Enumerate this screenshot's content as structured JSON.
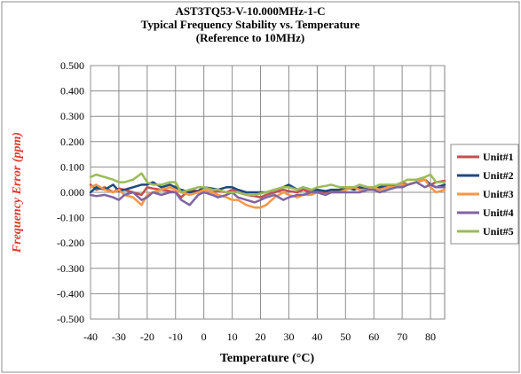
{
  "chart_data": {
    "type": "line",
    "title": [
      "AST3TQ53-V-10.000MHz-1-C",
      "Typical Frequency Stability vs. Temperature",
      "(Reference to 10MHz)"
    ],
    "xlabel": "Temperature (°C)",
    "ylabel": "Frequency Error (ppm)",
    "xlim": [
      -40,
      85
    ],
    "ylim": [
      -0.5,
      0.5
    ],
    "x_ticks": [
      -40,
      -30,
      -20,
      -10,
      0,
      10,
      20,
      30,
      40,
      50,
      60,
      70,
      80
    ],
    "x_tick_labels": [
      "-40",
      "-30",
      "-20",
      "-10",
      "0",
      "10",
      "20",
      "30",
      "40",
      "50",
      "60",
      "70",
      "80"
    ],
    "y_ticks": [
      0.5,
      0.4,
      0.3,
      0.2,
      0.1,
      0.0,
      -0.1,
      -0.2,
      -0.3,
      -0.4,
      -0.5
    ],
    "y_tick_labels": [
      "0.500",
      "0.400",
      "0.300",
      "0.200",
      "0.100",
      "0.000",
      "-0.100",
      "-0.200",
      "-0.300",
      "-0.400",
      "-0.500"
    ],
    "grid": true,
    "legend_position": "right",
    "series": [
      {
        "name": "Unit#1",
        "color": "#c0504d",
        "x": [
          -40,
          -38,
          -35,
          -32,
          -30,
          -28,
          -25,
          -22,
          -20,
          -18,
          -15,
          -12,
          -10,
          -8,
          -5,
          -2,
          0,
          3,
          5,
          8,
          10,
          12,
          15,
          18,
          20,
          22,
          25,
          28,
          30,
          33,
          35,
          38,
          40,
          43,
          45,
          48,
          50,
          53,
          55,
          58,
          60,
          62,
          65,
          68,
          70,
          72,
          75,
          78,
          80,
          82,
          85
        ],
        "y": [
          0.03,
          0.01,
          0.02,
          0.0,
          0.015,
          0.01,
          0.0,
          -0.01,
          0.02,
          0.015,
          0.01,
          0.005,
          0.0,
          -0.02,
          0.01,
          0.005,
          0.01,
          0.0,
          0.005,
          0.0,
          0.01,
          0.0,
          -0.01,
          -0.015,
          -0.02,
          -0.01,
          0.0,
          0.01,
          0.005,
          0.0,
          0.01,
          0.0,
          0.005,
          0.0,
          0.01,
          0.0,
          0.01,
          0.02,
          0.01,
          0.015,
          0.02,
          0.01,
          0.03,
          0.02,
          0.04,
          0.03,
          0.04,
          0.05,
          0.03,
          0.04,
          0.045
        ]
      },
      {
        "name": "Unit#2",
        "color": "#1f497d",
        "x": [
          -40,
          -38,
          -35,
          -32,
          -30,
          -28,
          -25,
          -22,
          -20,
          -18,
          -15,
          -12,
          -10,
          -8,
          -5,
          -2,
          0,
          3,
          5,
          8,
          10,
          12,
          15,
          18,
          20,
          22,
          25,
          28,
          30,
          33,
          35,
          38,
          40,
          43,
          45,
          48,
          50,
          53,
          55,
          58,
          60,
          62,
          65,
          68,
          70,
          72,
          75,
          78,
          80,
          82,
          85
        ],
        "y": [
          0.0,
          0.02,
          0.01,
          0.03,
          0.005,
          0.01,
          0.02,
          0.03,
          0.03,
          0.04,
          0.02,
          0.03,
          0.02,
          0.01,
          0.0,
          0.005,
          0.02,
          0.015,
          0.01,
          0.02,
          0.02,
          0.01,
          0.0,
          0.0,
          0.0,
          0.0,
          0.01,
          0.02,
          0.03,
          0.01,
          0.02,
          0.01,
          0.01,
          0.005,
          0.01,
          0.01,
          0.02,
          0.01,
          0.02,
          0.01,
          0.01,
          0.02,
          0.03,
          0.02,
          0.02,
          0.03,
          0.04,
          0.05,
          0.03,
          0.02,
          0.03
        ]
      },
      {
        "name": "Unit#3",
        "color": "#f79646",
        "x": [
          -40,
          -38,
          -35,
          -32,
          -30,
          -28,
          -25,
          -22,
          -20,
          -18,
          -15,
          -12,
          -10,
          -8,
          -5,
          -2,
          0,
          3,
          5,
          8,
          10,
          12,
          15,
          18,
          20,
          22,
          25,
          28,
          30,
          33,
          35,
          38,
          40,
          43,
          45,
          48,
          50,
          53,
          55,
          58,
          60,
          62,
          65,
          68,
          70,
          72,
          75,
          78,
          80,
          82,
          85
        ],
        "y": [
          0.02,
          0.03,
          0.01,
          0.0,
          0.01,
          -0.01,
          -0.02,
          -0.05,
          -0.01,
          0.0,
          0.01,
          0.02,
          0.01,
          0.0,
          -0.01,
          0.0,
          0.01,
          0.0,
          -0.01,
          -0.02,
          -0.03,
          -0.03,
          -0.05,
          -0.06,
          -0.06,
          -0.05,
          -0.02,
          0.0,
          -0.01,
          -0.02,
          -0.01,
          -0.01,
          0.0,
          -0.01,
          0.0,
          0.0,
          0.01,
          0.02,
          0.01,
          0.01,
          0.02,
          0.01,
          0.02,
          0.02,
          0.03,
          0.03,
          0.04,
          0.05,
          0.02,
          0.0,
          0.01
        ]
      },
      {
        "name": "Unit#4",
        "color": "#8064a2",
        "x": [
          -40,
          -38,
          -35,
          -32,
          -30,
          -28,
          -25,
          -22,
          -20,
          -18,
          -15,
          -12,
          -10,
          -8,
          -5,
          -2,
          0,
          3,
          5,
          8,
          10,
          12,
          15,
          18,
          20,
          22,
          25,
          28,
          30,
          33,
          35,
          38,
          40,
          43,
          45,
          48,
          50,
          53,
          55,
          58,
          60,
          62,
          65,
          68,
          70,
          72,
          75,
          78,
          80,
          82,
          85
        ],
        "y": [
          -0.01,
          -0.015,
          -0.01,
          -0.02,
          -0.03,
          -0.01,
          0.0,
          -0.03,
          -0.02,
          0.0,
          -0.01,
          0.0,
          0.0,
          -0.03,
          -0.05,
          -0.01,
          0.0,
          -0.01,
          -0.02,
          -0.01,
          0.0,
          -0.02,
          -0.03,
          -0.04,
          -0.03,
          -0.02,
          -0.01,
          -0.03,
          -0.02,
          -0.01,
          -0.01,
          0.0,
          0.0,
          -0.01,
          0.0,
          0.0,
          0.0,
          0.0,
          0.0,
          0.01,
          0.01,
          0.0,
          0.01,
          0.02,
          0.02,
          0.03,
          0.04,
          0.02,
          0.03,
          0.02,
          0.02
        ]
      },
      {
        "name": "Unit#5",
        "color": "#9bbb59",
        "x": [
          -40,
          -38,
          -35,
          -32,
          -30,
          -28,
          -25,
          -22,
          -20,
          -18,
          -15,
          -12,
          -10,
          -8,
          -5,
          -2,
          0,
          3,
          5,
          8,
          10,
          12,
          15,
          18,
          20,
          22,
          25,
          28,
          30,
          33,
          35,
          38,
          40,
          43,
          45,
          48,
          50,
          53,
          55,
          58,
          60,
          62,
          65,
          68,
          70,
          72,
          75,
          78,
          80,
          82,
          85
        ],
        "y": [
          0.06,
          0.07,
          0.06,
          0.05,
          0.04,
          0.04,
          0.05,
          0.075,
          0.04,
          0.03,
          0.03,
          0.04,
          0.04,
          0.0,
          0.01,
          0.02,
          0.02,
          0.01,
          0.01,
          0.0,
          0.0,
          0.0,
          -0.01,
          -0.01,
          -0.005,
          0.0,
          0.01,
          0.02,
          0.02,
          0.01,
          0.02,
          0.01,
          0.02,
          0.025,
          0.03,
          0.02,
          0.02,
          0.02,
          0.03,
          0.02,
          0.02,
          0.03,
          0.03,
          0.03,
          0.04,
          0.05,
          0.05,
          0.06,
          0.07,
          0.04,
          0.04
        ]
      }
    ]
  }
}
